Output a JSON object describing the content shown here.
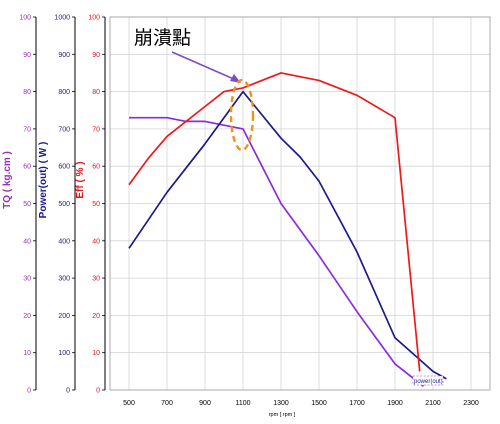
{
  "chart_data": {
    "type": "line",
    "xlabel": "rpm [ rpm ]",
    "x_ticks": [
      500,
      700,
      900,
      1100,
      1300,
      1500,
      1700,
      1900,
      2100,
      2300
    ],
    "xlim": [
      400,
      2400
    ],
    "axes": [
      {
        "key": "tq",
        "label": "TQ ( kg.cm )",
        "color": "#9b30b8",
        "ylim": [
          0,
          100
        ],
        "ticks": [
          0,
          10,
          20,
          30,
          40,
          50,
          60,
          70,
          80,
          90,
          100
        ]
      },
      {
        "key": "power",
        "label": "Power(out) ( W )",
        "color": "#1a1a8c",
        "ylim": [
          0,
          1000
        ],
        "ticks": [
          0,
          100,
          200,
          300,
          400,
          500,
          600,
          700,
          800,
          900,
          1000
        ]
      },
      {
        "key": "eff",
        "label": "Eff ( % )",
        "color": "#e8141c",
        "ylim": [
          0,
          100
        ],
        "ticks": [
          0,
          10,
          20,
          30,
          40,
          50,
          60,
          70,
          80,
          90,
          100
        ]
      }
    ],
    "series": [
      {
        "name": "TQ",
        "axis": "tq",
        "color": "#8a2be2",
        "x": [
          500,
          700,
          800,
          900,
          1000,
          1100,
          1300,
          1500,
          1700,
          1900,
          2050
        ],
        "y": [
          73,
          73,
          72,
          72,
          71,
          70,
          50,
          36,
          21,
          7,
          1
        ]
      },
      {
        "name": "Power(out)",
        "axis": "power",
        "color": "#1a1a8c",
        "x": [
          500,
          700,
          900,
          1100,
          1300,
          1400,
          1500,
          1700,
          1900,
          2100,
          2170
        ],
        "y": [
          380,
          530,
          660,
          800,
          675,
          625,
          560,
          370,
          140,
          50,
          30
        ]
      },
      {
        "name": "Eff",
        "axis": "eff",
        "color": "#f01818",
        "x": [
          500,
          600,
          700,
          900,
          1000,
          1100,
          1300,
          1500,
          1700,
          1900,
          2030
        ],
        "y": [
          55,
          62,
          68,
          76,
          80,
          81,
          85,
          83,
          79,
          73,
          5
        ]
      }
    ],
    "grid": true,
    "annotation": {
      "text": "崩潰點"
    },
    "legend_fragment": "power(out)"
  }
}
